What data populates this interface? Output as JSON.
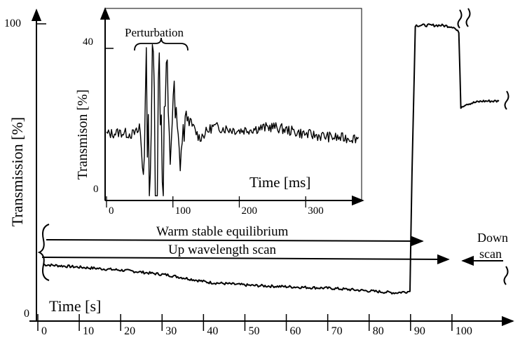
{
  "chart_data": [
    {
      "type": "line",
      "xlabel": "Time [s]",
      "ylabel": "Transmission  [%]",
      "xlim": [
        0,
        110
      ],
      "ylim": [
        0,
        100
      ],
      "x_ticks": [
        0,
        10,
        20,
        30,
        40,
        50,
        60,
        70,
        80,
        90,
        100
      ],
      "y_ticks": [
        0,
        100
      ],
      "series": [
        {
          "x": [
            0,
            10,
            20,
            30,
            40,
            50,
            60,
            70,
            80,
            85,
            88.5,
            89,
            89.8,
            96,
            99,
            100.3,
            100.8,
            102,
            106,
            110
          ],
          "y": [
            19,
            18,
            17,
            15.5,
            13,
            12,
            11.5,
            11,
            10,
            9.5,
            10,
            50,
            99.5,
            99.5,
            99,
            97,
            72,
            73,
            74,
            74
          ]
        }
      ],
      "annotations": [
        {
          "text": "Warm stable equilibrium",
          "from_x": 0,
          "to_x": 89
        },
        {
          "text": "Up wavelength scan",
          "from_x": 0,
          "to_x": 97
        },
        {
          "text": "Down",
          "line2": "scan",
          "from_x": 110,
          "to_x": 100
        }
      ]
    },
    {
      "type": "line",
      "xlabel": "Time [ms]",
      "ylabel": "Transmison [%]",
      "xlim": [
        0,
        380
      ],
      "ylim": [
        0,
        50
      ],
      "x_ticks": [
        0,
        100,
        200,
        300
      ],
      "y_ticks": [
        0,
        40
      ],
      "annotations": [
        {
          "text": "Perturbation",
          "from_x": 40,
          "to_x": 120
        }
      ],
      "series": [
        {
          "x": [
            0,
            20,
            40,
            50,
            55,
            60,
            65,
            70,
            75,
            80,
            85,
            90,
            95,
            100,
            110,
            120,
            140,
            160,
            200,
            250,
            300,
            350,
            380
          ],
          "y": [
            17,
            17.5,
            17,
            18,
            8,
            30,
            3,
            40,
            2,
            38,
            5,
            35,
            8,
            28,
            10,
            22,
            16,
            19,
            18,
            19,
            17,
            16,
            16
          ]
        }
      ]
    }
  ]
}
